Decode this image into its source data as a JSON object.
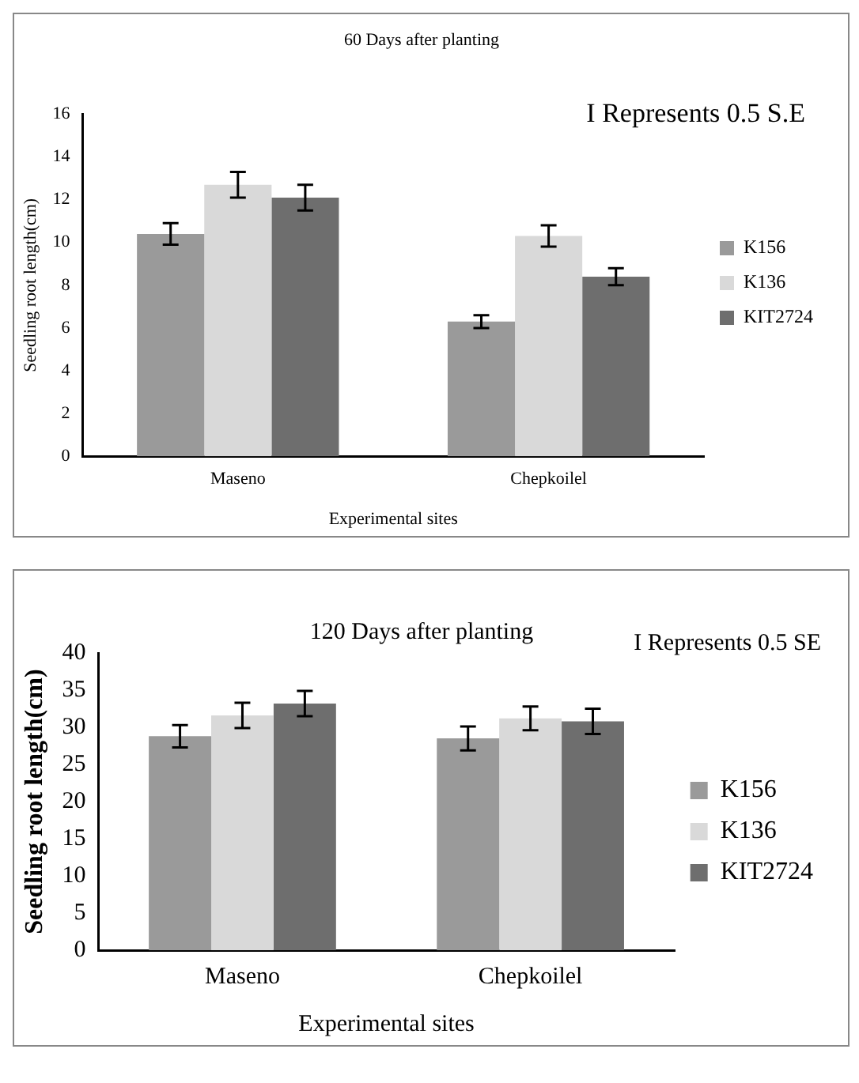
{
  "chart_data": [
    {
      "type": "bar",
      "title": "60 Days after planting",
      "xlabel": "Experimental sites",
      "ylabel": "Seedling root length(cm)",
      "annotations": [
        "I Represents 0.5 S.E"
      ],
      "categories": [
        "Maseno",
        "Chepkoilel"
      ],
      "series": [
        {
          "name": "K156",
          "color": "#9a9a9a",
          "values": [
            10.4,
            6.3
          ],
          "errors": [
            0.5,
            0.3
          ]
        },
        {
          "name": "K136",
          "color": "#d9d9d9",
          "values": [
            12.7,
            10.3
          ],
          "errors": [
            0.6,
            0.5
          ]
        },
        {
          "name": "KIT2724",
          "color": "#6e6e6e",
          "values": [
            12.1,
            8.4
          ],
          "errors": [
            0.6,
            0.4
          ]
        }
      ],
      "ylim": [
        0,
        16
      ],
      "yticks": [
        0,
        2,
        4,
        6,
        8,
        10,
        12,
        14,
        16
      ],
      "grid": false,
      "legend": "right"
    },
    {
      "type": "bar",
      "title": "120 Days after planting",
      "xlabel": "Experimental sites",
      "ylabel": "Seedling root length(cm)",
      "annotations": [
        "I Represents 0.5 SE"
      ],
      "categories": [
        "Maseno",
        "Chepkoilel"
      ],
      "series": [
        {
          "name": "K156",
          "color": "#9a9a9a",
          "values": [
            28.8,
            28.5
          ],
          "errors": [
            1.5,
            1.6
          ]
        },
        {
          "name": "K136",
          "color": "#d9d9d9",
          "values": [
            31.6,
            31.2
          ],
          "errors": [
            1.7,
            1.6
          ]
        },
        {
          "name": "KIT2724",
          "color": "#6e6e6e",
          "values": [
            33.2,
            30.8
          ],
          "errors": [
            1.7,
            1.7
          ]
        }
      ],
      "ylim": [
        0,
        40
      ],
      "yticks": [
        0,
        5,
        10,
        15,
        20,
        25,
        30,
        35,
        40
      ],
      "grid": false,
      "legend": "right"
    }
  ]
}
